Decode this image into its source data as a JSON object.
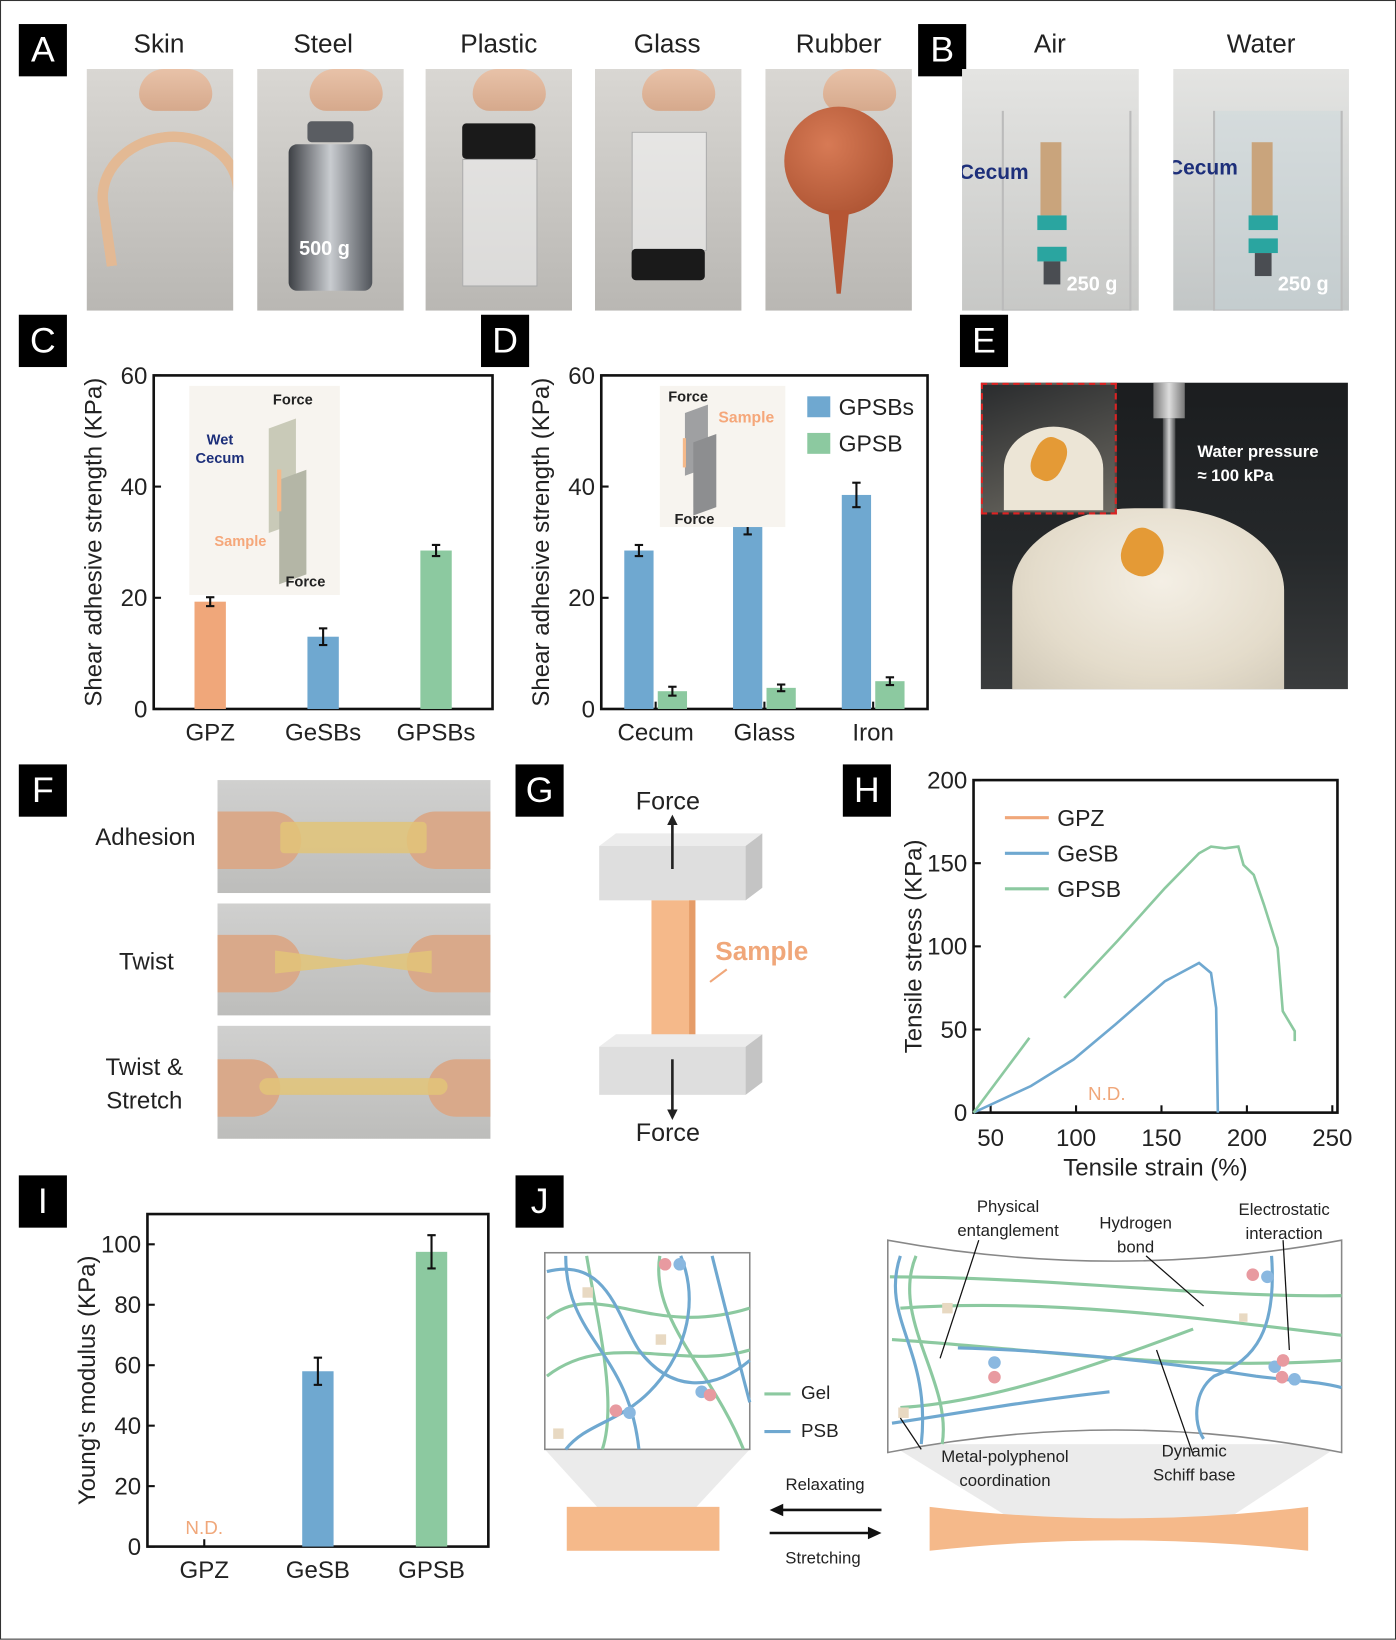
{
  "panel_labels": [
    "A",
    "B",
    "C",
    "D",
    "E",
    "F",
    "G",
    "H",
    "I",
    "J"
  ],
  "panel_a": {
    "materials": [
      "Skin",
      "Steel",
      "Plastic",
      "Glass",
      "Rubber"
    ],
    "weight": "500 g"
  },
  "panel_b": {
    "conditions": [
      "Air",
      "Water"
    ],
    "tissue_label": "Cecum",
    "weight": "250 g"
  },
  "panel_c_inset": {
    "force_top": "Force",
    "wet_cecum": "Wet\nCecum",
    "sample": "Sample",
    "force_bottom": "Force"
  },
  "panel_d_inset": {
    "force_top": "Force",
    "sample": "Sample",
    "force_bottom": "Force"
  },
  "panel_e": {
    "caption_line1": "Water pressure",
    "caption_line2": "≈ 100 kPa"
  },
  "panel_f": {
    "states": [
      "Adhesion",
      "Twist",
      "Twist &\nStretch"
    ]
  },
  "panel_g": {
    "force_top": "Force",
    "sample": "Sample",
    "force_bottom": "Force"
  },
  "panel_j": {
    "physical_entanglement": "Physical\nentanglement",
    "hydrogen_bond": "Hydrogen\nbond",
    "electrostatic_interaction": "Electrostatic\ninteraction",
    "metal_polyphenol": "Metal-polyphenol\ncoordination",
    "schiff_base": "Dynamic\nSchiff base",
    "legend_gel": "Gel",
    "legend_psb": "PSB",
    "relaxating": "Relaxating",
    "stretching": "Stretching"
  },
  "colors": {
    "gpz": "#f0a77a",
    "gesb": "#6fa8d0",
    "gpsb": "#8cc9a0",
    "sample": "#f5b98a",
    "cecum_text": "#1d2f7a"
  },
  "chart_data": [
    {
      "type": "bar",
      "categories": [
        "GPZ",
        "GeSBs",
        "GPSBs"
      ],
      "values": [
        19.3,
        13.0,
        28.5
      ],
      "errors": [
        0.8,
        1.5,
        1.0
      ],
      "bar_colors": [
        "#f0a77a",
        "#6fa8d0",
        "#8cc9a0"
      ],
      "xlabel": "",
      "ylabel": "Shear adhesive strength (KPa)",
      "ylim": [
        0,
        60
      ],
      "yticks": [
        0,
        20,
        40,
        60
      ],
      "grid": false
    },
    {
      "type": "bar",
      "categories": [
        "Cecum",
        "Glass",
        "Iron"
      ],
      "series": [
        {
          "name": "GPSBs",
          "values": [
            28.5,
            33.2,
            38.5
          ],
          "errors": [
            1.0,
            1.8,
            2.2
          ],
          "color": "#6fa8d0"
        },
        {
          "name": "GPSB",
          "values": [
            3.2,
            3.8,
            5.0
          ],
          "errors": [
            0.8,
            0.6,
            0.7
          ],
          "color": "#8cc9a0"
        }
      ],
      "xlabel": "",
      "ylabel": "Shear adhesive strength (KPa)",
      "ylim": [
        0,
        60
      ],
      "yticks": [
        0,
        20,
        40,
        60
      ],
      "legend": "top-right",
      "grid": false
    },
    {
      "type": "line",
      "xlabel": "Tensile strain (%)",
      "ylabel": "Tensile stress (KPa)",
      "xlim": [
        40,
        253
      ],
      "ylim": [
        0,
        200
      ],
      "xticks": [
        50,
        100,
        150,
        200,
        250
      ],
      "yticks": [
        0,
        50,
        100,
        150,
        200
      ],
      "legend": "top-left",
      "annotation": "N.D.",
      "series": [
        {
          "name": "GPZ",
          "color": "#f0a77a",
          "segments": []
        },
        {
          "name": "GeSB",
          "color": "#6fa8d0",
          "segments": [
            [
              [
                40,
                0
              ],
              [
                73.6,
                16
              ],
              [
                98.6,
                32
              ],
              [
                123,
                53
              ],
              [
                152,
                79
              ],
              [
                172,
                90
              ],
              [
                179,
                84
              ],
              [
                182,
                63
              ],
              [
                183,
                0
              ]
            ]
          ]
        },
        {
          "name": "GPSB",
          "color": "#8cc9a0",
          "segments": [
            [
              [
                40,
                0
              ],
              [
                72.7,
                45
              ]
            ],
            [
              [
                93,
                69
              ],
              [
                124,
                103
              ],
              [
                152,
                135
              ],
              [
                172,
                156
              ],
              [
                179,
                160
              ],
              [
                187,
                159
              ],
              [
                195,
                160
              ],
              [
                198,
                149
              ],
              [
                204,
                143
              ],
              [
                210,
                125
              ],
              [
                218,
                99
              ],
              [
                221,
                61
              ],
              [
                228,
                49
              ],
              [
                228,
                43
              ]
            ]
          ]
        }
      ],
      "grid": false
    },
    {
      "type": "bar",
      "categories": [
        "GPZ",
        "GeSB",
        "GPSB"
      ],
      "values": [
        null,
        58.0,
        97.5
      ],
      "errors": [
        null,
        4.5,
        5.5
      ],
      "bar_colors": [
        "#f0a77a",
        "#6fa8d0",
        "#8cc9a0"
      ],
      "na_label": "N.D.",
      "xlabel": "",
      "ylabel": "Young's modulus (KPa)",
      "ylim": [
        0,
        110
      ],
      "yticks": [
        0,
        20,
        40,
        60,
        80,
        100
      ],
      "grid": false
    }
  ]
}
